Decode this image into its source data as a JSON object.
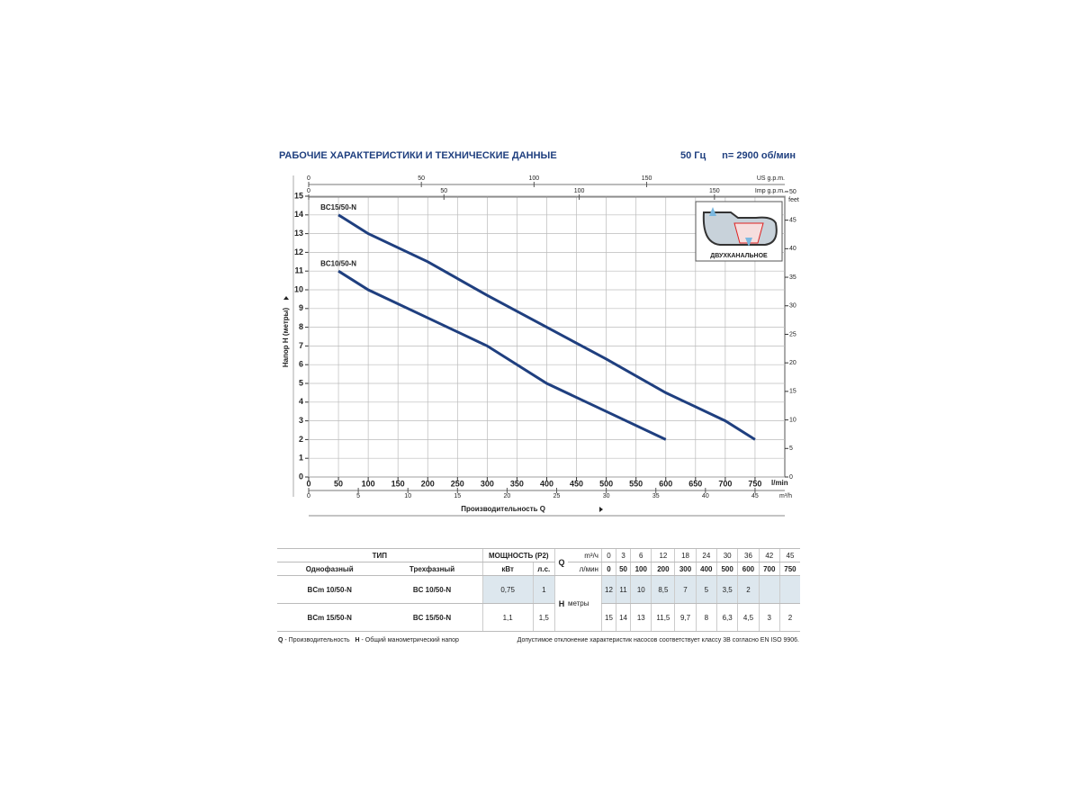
{
  "header": {
    "title": "РАБОЧИЕ ХАРАКТЕРИСТИКИ И ТЕХНИЧЕСКИЕ ДАННЫЕ",
    "frequency": "50 Гц",
    "speed": "n= 2900 об/мин"
  },
  "chart_data": {
    "type": "line",
    "x_label": "Производительность Q",
    "x_unit": "l/min",
    "y_label": "Напор Н (метры)",
    "xlim": [
      0,
      800
    ],
    "xticks": [
      0,
      50,
      100,
      150,
      200,
      250,
      300,
      350,
      400,
      450,
      500,
      550,
      600,
      650,
      700,
      750
    ],
    "ylim": [
      0,
      15
    ],
    "yticks": [
      0,
      1,
      2,
      3,
      4,
      5,
      6,
      7,
      8,
      9,
      10,
      11,
      12,
      13,
      14,
      15
    ],
    "grid": true,
    "series": [
      {
        "name": "BC15/50-N",
        "color": "#1f3f7f",
        "x": [
          50,
          100,
          200,
          300,
          400,
          500,
          600,
          700,
          750
        ],
        "values": [
          14,
          13,
          11.5,
          9.7,
          8,
          6.3,
          4.5,
          3,
          2
        ]
      },
      {
        "name": "BC10/50-N",
        "color": "#1f3f7f",
        "x": [
          50,
          100,
          200,
          300,
          400,
          500,
          600
        ],
        "values": [
          11,
          10,
          8.5,
          7,
          5,
          3.5,
          2
        ]
      }
    ],
    "secondary_axes": [
      {
        "position": "top",
        "label": "US g.p.m.",
        "lim": [
          0,
          211.3
        ],
        "ticks": [
          0,
          50,
          100,
          150
        ]
      },
      {
        "position": "top",
        "label": "Imp g.p.m.",
        "lim": [
          0,
          176
        ],
        "ticks": [
          0,
          50,
          100,
          150
        ]
      },
      {
        "position": "bottom",
        "label": "m³/h",
        "lim": [
          0,
          48
        ],
        "ticks": [
          0,
          5,
          10,
          15,
          20,
          25,
          30,
          35,
          40,
          45
        ]
      }
    ],
    "y2_label": "feet",
    "y2lim": [
      0,
      49.2
    ],
    "y2ticks": [
      0,
      5,
      10,
      15,
      20,
      25,
      30,
      35,
      40,
      45,
      50
    ],
    "inset_label": "ДВУХКАНАЛЬНОЕ"
  },
  "table": {
    "type_header": "ТИП",
    "power_header": "МОЩНОСТЬ (P2)",
    "subheaders": [
      "Однофазный",
      "Трехфазный",
      "кВт",
      "л.с."
    ],
    "q_label": "Q",
    "q_units": [
      "m³/ч",
      "л/мин"
    ],
    "q_m3h": [
      "0",
      "3",
      "6",
      "12",
      "18",
      "24",
      "30",
      "36",
      "42",
      "45"
    ],
    "q_lmin": [
      "0",
      "50",
      "100",
      "200",
      "300",
      "400",
      "500",
      "600",
      "700",
      "750"
    ],
    "h_label": "H",
    "h_unit": "метры",
    "rows": [
      [
        "BCm 10/50-N",
        "BC 10/50-N",
        "0,75",
        "1"
      ],
      [
        "BCm 15/50-N",
        "BC 15/50-N",
        "1,1",
        "1,5"
      ]
    ],
    "h_values": [
      [
        "12",
        "11",
        "10",
        "8,5",
        "7",
        "5",
        "3,5",
        "2",
        null,
        null
      ],
      [
        "15",
        "14",
        "13",
        "11,5",
        "9,7",
        "8",
        "6,3",
        "4,5",
        "3",
        "2"
      ]
    ]
  },
  "footnotes": {
    "q_key": "Q",
    "q_text": "- Производительность",
    "h_key": "H",
    "h_text": "- Общий манометрический напор",
    "tolerance": "Допустимое отклонение характеристик насосов соответствует классу 3B согласно EN ISO 9906."
  }
}
